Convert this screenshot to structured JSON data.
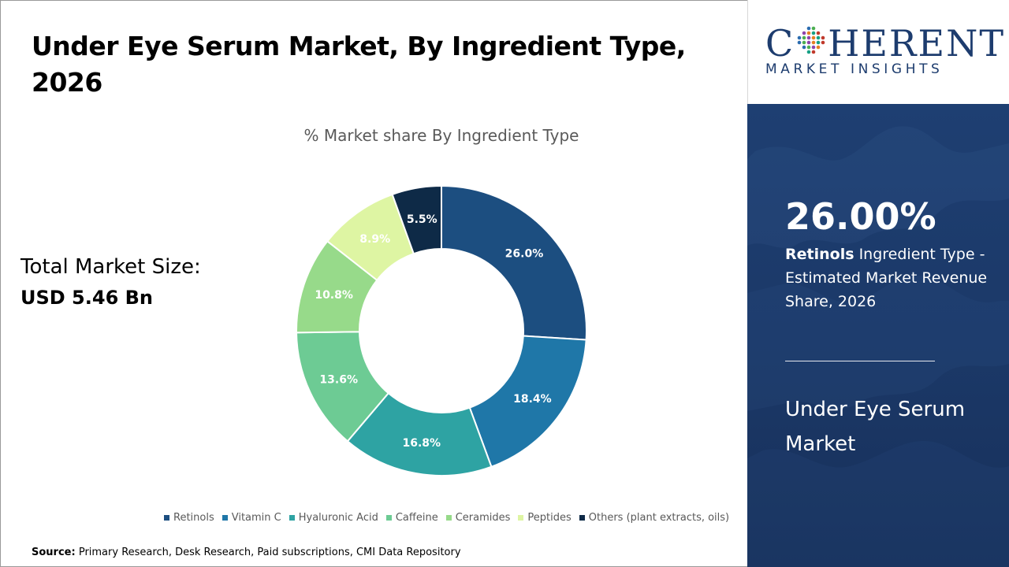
{
  "title": "Under Eye Serum Market, By Ingredient Type, 2026",
  "total_market": {
    "label": "Total Market Size:",
    "value": "USD 5.46 Bn"
  },
  "source": {
    "label": "Source:",
    "text": "Primary Research, Desk Research, Paid subscriptions, CMI Data Repository"
  },
  "logo": {
    "word_left": "C",
    "word_right": "HERENT",
    "subtitle": "MARKET INSIGHTS"
  },
  "highlight": {
    "value": "26.00%",
    "segment": "Retinols",
    "description": "Ingredient Type - Estimated Market Revenue Share, 2026",
    "market_name": "Under Eye Serum Market"
  },
  "chart_data": {
    "type": "pie",
    "subtype": "donut",
    "title": "% Market share By Ingredient Type",
    "categories": [
      "Retinols",
      "Vitamin C",
      "Hyaluronic Acid",
      "Caffeine",
      "Ceramides",
      "Peptides",
      "Others (plant extracts, oils)"
    ],
    "values": [
      26.0,
      18.4,
      16.8,
      13.6,
      10.8,
      8.9,
      5.5
    ],
    "labels": [
      "26.0%",
      "18.4%",
      "16.8%",
      "13.6%",
      "10.8%",
      "8.9%",
      "5.5%"
    ],
    "colors": [
      "#1c4e80",
      "#1f77a8",
      "#2ea3a3",
      "#6dcb94",
      "#97da8a",
      "#def5a3",
      "#0e2a47"
    ],
    "label_colors": [
      "#ffffff",
      "#ffffff",
      "#ffffff",
      "#ffffff",
      "#ffffff",
      "#ffffff",
      "#ffffff"
    ],
    "legend_position": "bottom"
  }
}
